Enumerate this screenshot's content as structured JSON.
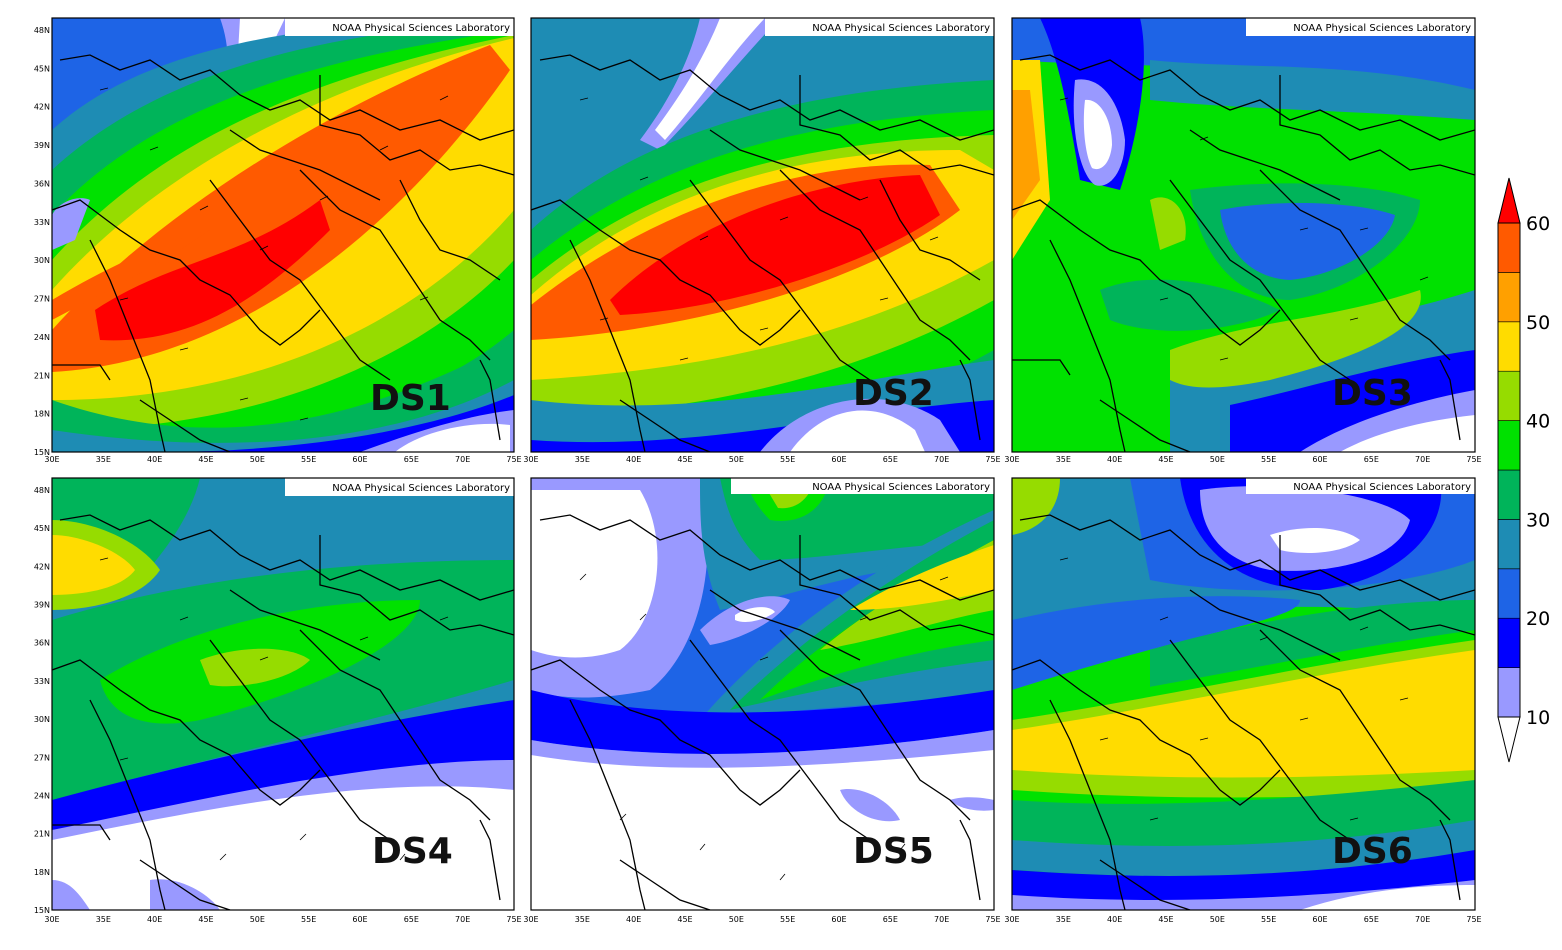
{
  "figure": {
    "credit": "NOAA Physical Sciences Laboratory",
    "lat_ticks": [
      "48N",
      "45N",
      "42N",
      "39N",
      "36N",
      "33N",
      "30N",
      "27N",
      "24N",
      "21N",
      "18N",
      "15N"
    ],
    "lon_ticks": [
      "30E",
      "35E",
      "40E",
      "45E",
      "50E",
      "55E",
      "60E",
      "65E",
      "70E",
      "75E"
    ],
    "colorbar": {
      "tick_labels": [
        "60",
        "50",
        "40",
        "30",
        "20",
        "10"
      ],
      "levels": [
        10,
        15,
        20,
        25,
        30,
        35,
        40,
        45,
        50,
        55,
        60
      ],
      "colors": [
        "#ffffff",
        "#9999ff",
        "#0000ff",
        "#1e64e6",
        "#1e8cb4",
        "#00b45a",
        "#00e100",
        "#96dc00",
        "#ffdc00",
        "#ffa000",
        "#ff5a00",
        "#ff0000"
      ]
    },
    "panels": [
      {
        "id": "DS1",
        "label": "DS1"
      },
      {
        "id": "DS2",
        "label": "DS2"
      },
      {
        "id": "DS3",
        "label": "DS3"
      },
      {
        "id": "DS4",
        "label": "DS4"
      },
      {
        "id": "DS5",
        "label": "DS5"
      },
      {
        "id": "DS6",
        "label": "DS6"
      }
    ]
  }
}
